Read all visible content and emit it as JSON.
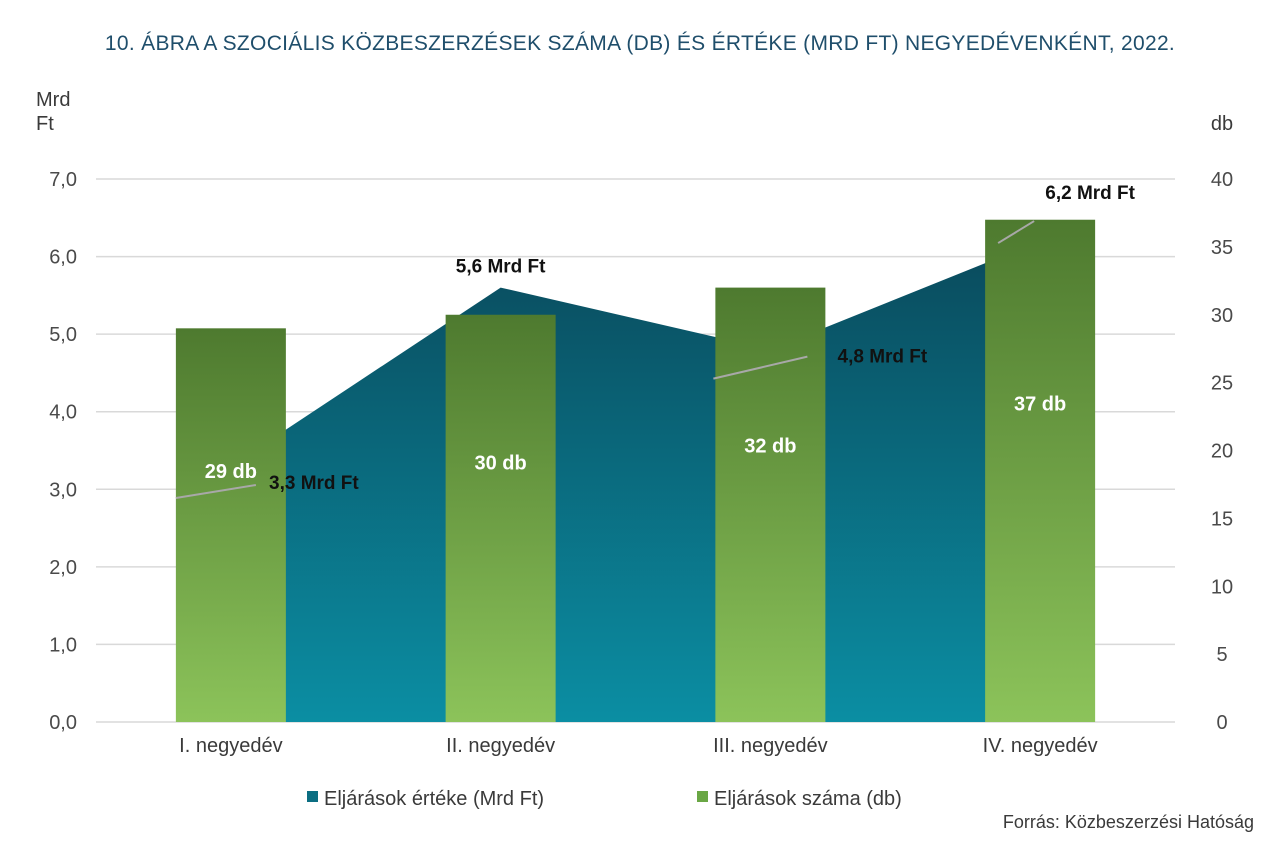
{
  "chart_data": {
    "type": "bar+area",
    "title": "10. ÁBRA A SZOCIÁLIS KÖZBESZERZÉSEK SZÁMA (DB) ÉS ÉRTÉKE (MRD FT) NEGYEDÉVENKÉNT, 2022.",
    "categories": [
      "I. negyedév",
      "II. negyedév",
      "III. negyedév",
      "IV. negyedév"
    ],
    "left_axis": {
      "unit_line1": "Mrd",
      "unit_line2": "Ft",
      "ylim": [
        0,
        7
      ],
      "ticks": [
        0,
        1,
        2,
        3,
        4,
        5,
        6,
        7
      ],
      "tick_labels": [
        "0,0",
        "1,0",
        "2,0",
        "3,0",
        "4,0",
        "5,0",
        "6,0",
        "7,0"
      ]
    },
    "right_axis": {
      "unit": "db",
      "ylim": [
        0,
        40
      ],
      "ticks": [
        0,
        5,
        10,
        15,
        20,
        25,
        30,
        35,
        40
      ],
      "tick_labels": [
        "0",
        "5",
        "10",
        "15",
        "20",
        "25",
        "30",
        "35",
        "40"
      ]
    },
    "series": [
      {
        "name": "Eljárások értéke (Mrd Ft)",
        "type": "area",
        "axis": "left",
        "color": "#0b6e82",
        "values": [
          3.3,
          5.6,
          4.8,
          6.2
        ],
        "labels": [
          "3,3 Mrd Ft",
          "5,6 Mrd Ft",
          "4,8 Mrd Ft",
          "6,2 Mrd Ft"
        ]
      },
      {
        "name": "Eljárások száma (db)",
        "type": "bar",
        "axis": "right",
        "color": "#6aa745",
        "values": [
          29,
          30,
          32,
          37
        ],
        "labels": [
          "29 db",
          "30 db",
          "32 db",
          "37 db"
        ]
      }
    ],
    "grid": true,
    "legend": "bottom",
    "source": "Forrás: Közbeszerzési Hatóság"
  }
}
